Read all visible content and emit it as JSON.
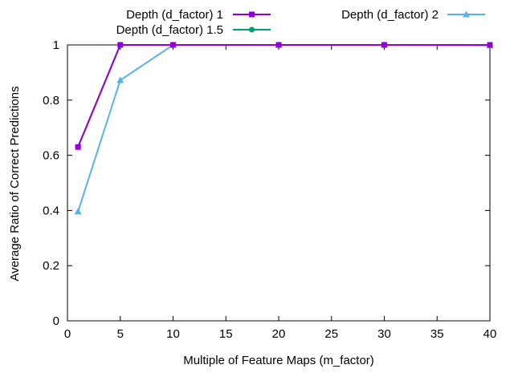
{
  "chart_data": {
    "type": "line",
    "xlabel": "Multiple of Feature Maps (m_factor)",
    "ylabel": "Average Ratio of Correct Predictions",
    "xlim": [
      0,
      40
    ],
    "ylim": [
      0,
      1
    ],
    "xticks": [
      0,
      5,
      10,
      15,
      20,
      25,
      30,
      35,
      40
    ],
    "yticks": [
      0,
      0.2,
      0.4,
      0.6,
      0.8,
      1
    ],
    "ytick_labels": [
      "0",
      "0.2",
      "0.4",
      "0.6",
      "0.8",
      "1"
    ],
    "grid": false,
    "legend_position": "top",
    "series": [
      {
        "name": "Depth (d_factor) 1",
        "color": "#9400d3",
        "marker": "square",
        "x": [
          1,
          5,
          10,
          20,
          30,
          40
        ],
        "y": [
          0.63,
          1.0,
          1.0,
          1.0,
          1.0,
          1.0
        ]
      },
      {
        "name": "Depth (d_factor) 1.5",
        "color": "#009e73",
        "marker": "circle",
        "x": [
          1,
          5,
          10,
          20,
          30,
          40
        ],
        "y": [
          0.63,
          1.0,
          1.0,
          1.0,
          1.0,
          1.0
        ]
      },
      {
        "name": "Depth (d_factor) 2",
        "color": "#56b4e9",
        "marker": "triangle",
        "x": [
          1,
          5,
          10,
          20,
          30,
          40
        ],
        "y": [
          0.396,
          0.872,
          1.0,
          1.0,
          1.0,
          0.998
        ]
      }
    ]
  }
}
